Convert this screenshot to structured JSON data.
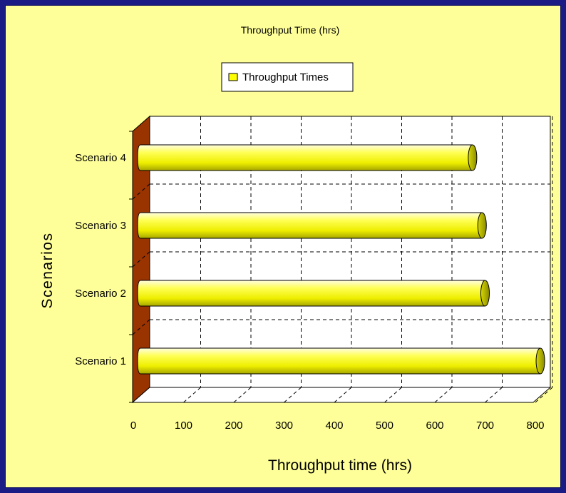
{
  "chart_data": {
    "type": "bar",
    "orientation": "horizontal",
    "title": "Throughput Time (hrs)",
    "xlabel": "Throughput time (hrs)",
    "ylabel": "Scenarios",
    "categories": [
      "Scenario 1",
      "Scenario 2",
      "Scenario 3",
      "Scenario 4"
    ],
    "series": [
      {
        "name": "Throughput Times",
        "values": [
          810,
          700,
          694,
          675
        ]
      }
    ],
    "xlim": [
      0,
      800
    ],
    "xticks": [
      0,
      100,
      200,
      300,
      400,
      500,
      600,
      700,
      800
    ],
    "grid": true,
    "legend_position": "top",
    "style": "3d-cylinder",
    "colors": {
      "bar": "#ffff00",
      "bar_highlight": "#ffffcc",
      "bar_shade": "#b8b800",
      "wall": "#993300",
      "plot_bg": "#ffffff",
      "chart_bg": "#ffff99",
      "outer_bg": "#1b1b86"
    }
  }
}
